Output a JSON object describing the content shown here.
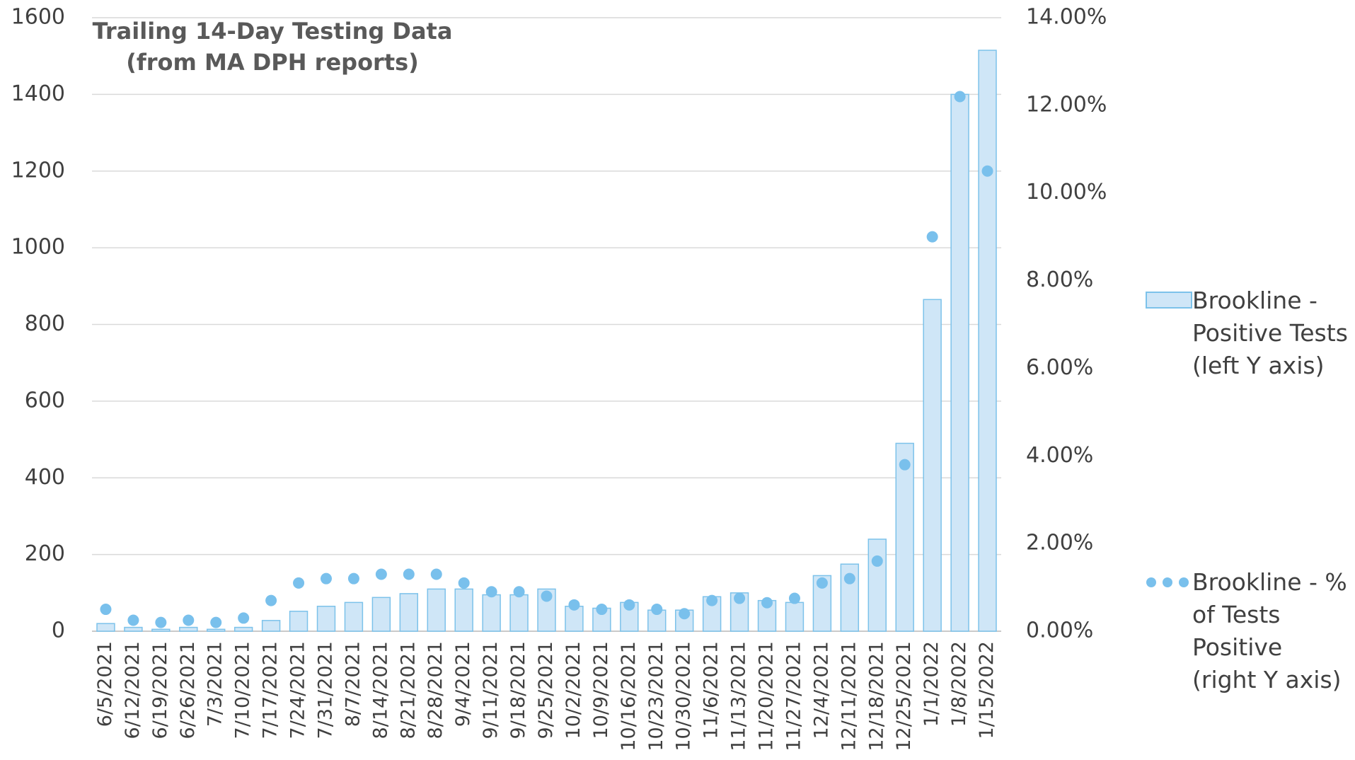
{
  "chart_data": {
    "type": "bar",
    "title": "Trailing 14-Day Testing Data",
    "subtitle": "(from MA DPH reports)",
    "categories": [
      "6/5/2021",
      "6/12/2021",
      "6/19/2021",
      "6/26/2021",
      "7/3/2021",
      "7/10/2021",
      "7/17/2021",
      "7/24/2021",
      "7/31/2021",
      "8/7/2021",
      "8/14/2021",
      "8/21/2021",
      "8/28/2021",
      "9/4/2021",
      "9/11/2021",
      "9/18/2021",
      "9/25/2021",
      "10/2/2021",
      "10/9/2021",
      "10/16/2021",
      "10/23/2021",
      "10/30/2021",
      "11/6/2021",
      "11/13/2021",
      "11/20/2021",
      "11/27/2021",
      "12/4/2021",
      "12/11/2021",
      "12/18/2021",
      "12/25/2021",
      "1/1/2022",
      "1/8/2022",
      "1/15/2022"
    ],
    "series": [
      {
        "name": "Brookline - Positive Tests (left Y axis)",
        "type": "bar",
        "color": "#cfe6f7",
        "edge": "#7cc2ea",
        "values": [
          20,
          10,
          5,
          10,
          5,
          10,
          28,
          52,
          65,
          75,
          88,
          98,
          110,
          110,
          95,
          95,
          110,
          65,
          60,
          75,
          55,
          55,
          90,
          100,
          80,
          75,
          145,
          175,
          240,
          490,
          865,
          1400,
          1515
        ]
      },
      {
        "name": "Brookline - % of Tests Positive (right Y axis)",
        "type": "scatter",
        "axis": "y2",
        "color": "#79c0ec",
        "values": [
          0.5,
          0.25,
          0.2,
          0.25,
          0.2,
          0.3,
          0.7,
          1.1,
          1.2,
          1.2,
          1.3,
          1.3,
          1.3,
          1.1,
          0.9,
          0.9,
          0.8,
          0.6,
          0.5,
          0.6,
          0.5,
          0.4,
          0.7,
          0.75,
          0.65,
          0.75,
          1.1,
          1.2,
          1.6,
          3.8,
          9.0,
          12.2,
          10.5
        ]
      }
    ],
    "ylim": [
      0,
      1600
    ],
    "yticks": [
      0,
      200,
      400,
      600,
      800,
      1000,
      1200,
      1400,
      1600
    ],
    "y2lim": [
      0,
      14
    ],
    "y2ticks": [
      {
        "value": 0,
        "label": "0.00%"
      },
      {
        "value": 2,
        "label": "2.00%"
      },
      {
        "value": 4,
        "label": "4.00%"
      },
      {
        "value": 6,
        "label": "6.00%"
      },
      {
        "value": 8,
        "label": "8.00%"
      },
      {
        "value": 10,
        "label": "10.00%"
      },
      {
        "value": 12,
        "label": "12.00%"
      },
      {
        "value": 14,
        "label": "14.00%"
      }
    ],
    "grid": true,
    "legend": "right"
  }
}
